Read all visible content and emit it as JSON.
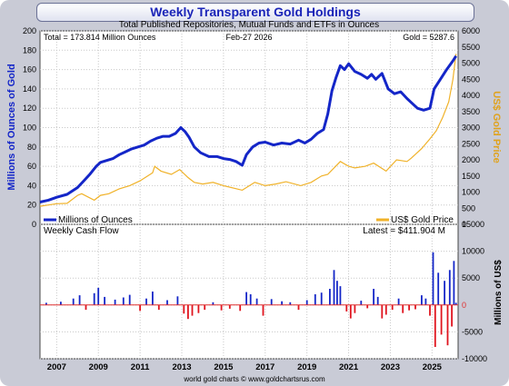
{
  "chart_data": [
    {
      "type": "line",
      "title": "Weekly Transparent Gold Holdings",
      "subtitle": "Total Published Repositories, Mutual Funds and ETFs in Ounces",
      "annotations": {
        "total": "Total = 173.814 Million Ounces",
        "date": "Feb-27  2026",
        "gold": "Gold = 5287.6"
      },
      "ylabel": "Millions of Ounces of Gold",
      "y2label": "US$ Gold Price",
      "ylim": [
        0,
        200
      ],
      "y2lim": [
        0,
        6000
      ],
      "yticks": [
        "0",
        "20",
        "40",
        "60",
        "80",
        "100",
        "120",
        "140",
        "160",
        "180",
        "200"
      ],
      "y2ticks": [
        "0",
        "500",
        "1000",
        "1500",
        "2000",
        "2500",
        "3000",
        "3500",
        "4000",
        "4500",
        "5000",
        "5500",
        "6000"
      ],
      "grid": true,
      "legend_position": "bottom",
      "colors": {
        "holdings": "#1426c8",
        "price": "#f0b229"
      },
      "series": [
        {
          "name": "Millions of Ounces",
          "axis": "left",
          "x": [
            2006.2,
            2006.6,
            2007.0,
            2007.5,
            2008.0,
            2008.3,
            2008.6,
            2008.9,
            2009.1,
            2009.4,
            2009.7,
            2010.0,
            2010.3,
            2010.6,
            2010.9,
            2011.2,
            2011.5,
            2011.8,
            2012.1,
            2012.4,
            2012.7,
            2012.95,
            2013.15,
            2013.35,
            2013.6,
            2013.9,
            2014.3,
            2014.7,
            2015.0,
            2015.3,
            2015.6,
            2015.9,
            2016.1,
            2016.4,
            2016.7,
            2017.0,
            2017.4,
            2017.8,
            2018.2,
            2018.6,
            2018.9,
            2019.2,
            2019.5,
            2019.8,
            2020.0,
            2020.2,
            2020.4,
            2020.6,
            2020.8,
            2021.0,
            2021.3,
            2021.6,
            2021.9,
            2022.1,
            2022.3,
            2022.6,
            2022.9,
            2023.2,
            2023.5,
            2023.8,
            2024.0,
            2024.3,
            2024.6,
            2024.9,
            2025.1,
            2025.4,
            2025.7,
            2026.0,
            2026.15
          ],
          "values": [
            23,
            25,
            28,
            31,
            38,
            45,
            52,
            60,
            64,
            66,
            68,
            72,
            75,
            78,
            80,
            82,
            86,
            89,
            91,
            91,
            94,
            100,
            96,
            90,
            80,
            74,
            70,
            70,
            68,
            67,
            65,
            61,
            72,
            80,
            84,
            85,
            82,
            84,
            83,
            87,
            84,
            88,
            94,
            98,
            114,
            138,
            152,
            164,
            160,
            166,
            158,
            155,
            151,
            155,
            150,
            156,
            140,
            135,
            137,
            130,
            126,
            120,
            118,
            120,
            140,
            150,
            160,
            169,
            174
          ]
        },
        {
          "name": "US$ Gold Price",
          "axis": "right",
          "x": [
            2006.2,
            2006.6,
            2007.0,
            2007.5,
            2008.0,
            2008.2,
            2008.8,
            2009.1,
            2009.5,
            2010.0,
            2010.5,
            2011.0,
            2011.6,
            2011.7,
            2012.0,
            2012.5,
            2012.9,
            2013.3,
            2013.6,
            2014.0,
            2014.5,
            2015.0,
            2015.9,
            2016.5,
            2017.0,
            2017.5,
            2018.0,
            2018.7,
            2019.2,
            2019.7,
            2020.0,
            2020.6,
            2021.0,
            2021.3,
            2021.8,
            2022.2,
            2022.8,
            2023.3,
            2023.8,
            2024.0,
            2024.5,
            2024.9,
            2025.2,
            2025.5,
            2025.8,
            2026.0,
            2026.15
          ],
          "values": [
            560,
            600,
            640,
            650,
            900,
            950,
            750,
            900,
            950,
            1100,
            1200,
            1350,
            1600,
            1800,
            1650,
            1550,
            1700,
            1450,
            1300,
            1250,
            1300,
            1200,
            1060,
            1300,
            1200,
            1250,
            1320,
            1200,
            1300,
            1500,
            1550,
            1950,
            1800,
            1750,
            1800,
            1900,
            1650,
            2000,
            1950,
            2050,
            2350,
            2650,
            2900,
            3300,
            3800,
            4500,
            5287
          ]
        }
      ],
      "xlabels": [
        "2007",
        "2009",
        "2011",
        "2013",
        "2015",
        "2017",
        "2019",
        "2021",
        "2023",
        "2025"
      ],
      "legend": [
        "Millions of Ounces",
        "US$ Gold Price"
      ]
    },
    {
      "type": "bar",
      "title": "Weekly Cash Flow",
      "annotation": "Latest = $411.904 M",
      "ylabel": "Millions of US$",
      "ylim": [
        -10000,
        15000
      ],
      "yticks": [
        "15000",
        "10000",
        "5000",
        "0",
        "-5000",
        "-10000"
      ],
      "colors": {
        "positive": "#1426c8",
        "negative": "#e0141e",
        "zero_line": "#e03030"
      },
      "flows": [
        {
          "x": 2006.5,
          "v": 400
        },
        {
          "x": 2007.2,
          "v": 600
        },
        {
          "x": 2007.8,
          "v": 1200
        },
        {
          "x": 2008.1,
          "v": 1800
        },
        {
          "x": 2008.4,
          "v": -900
        },
        {
          "x": 2008.8,
          "v": 2200
        },
        {
          "x": 2009.0,
          "v": 3200
        },
        {
          "x": 2009.3,
          "v": 1500
        },
        {
          "x": 2009.8,
          "v": 1000
        },
        {
          "x": 2010.2,
          "v": 1400
        },
        {
          "x": 2010.5,
          "v": 1900
        },
        {
          "x": 2011.0,
          "v": -1100
        },
        {
          "x": 2011.3,
          "v": 1200
        },
        {
          "x": 2011.6,
          "v": 2500
        },
        {
          "x": 2011.9,
          "v": -900
        },
        {
          "x": 2012.3,
          "v": 900
        },
        {
          "x": 2012.8,
          "v": 1600
        },
        {
          "x": 2013.1,
          "v": -1600
        },
        {
          "x": 2013.3,
          "v": -2600
        },
        {
          "x": 2013.5,
          "v": -2000
        },
        {
          "x": 2013.8,
          "v": -1500
        },
        {
          "x": 2014.1,
          "v": -900
        },
        {
          "x": 2014.5,
          "v": 500
        },
        {
          "x": 2014.9,
          "v": -1000
        },
        {
          "x": 2015.3,
          "v": -700
        },
        {
          "x": 2015.8,
          "v": -1100
        },
        {
          "x": 2016.1,
          "v": 2400
        },
        {
          "x": 2016.3,
          "v": 2000
        },
        {
          "x": 2016.6,
          "v": 1200
        },
        {
          "x": 2016.9,
          "v": -2000
        },
        {
          "x": 2017.3,
          "v": 1100
        },
        {
          "x": 2017.8,
          "v": 700
        },
        {
          "x": 2018.2,
          "v": 500
        },
        {
          "x": 2018.6,
          "v": -900
        },
        {
          "x": 2019.0,
          "v": 900
        },
        {
          "x": 2019.4,
          "v": 2000
        },
        {
          "x": 2019.7,
          "v": 2300
        },
        {
          "x": 2020.1,
          "v": 3000
        },
        {
          "x": 2020.3,
          "v": 6500
        },
        {
          "x": 2020.45,
          "v": 4500
        },
        {
          "x": 2020.6,
          "v": 3500
        },
        {
          "x": 2020.9,
          "v": -1200
        },
        {
          "x": 2021.1,
          "v": -2500
        },
        {
          "x": 2021.3,
          "v": -1500
        },
        {
          "x": 2021.6,
          "v": 800
        },
        {
          "x": 2021.9,
          "v": -600
        },
        {
          "x": 2022.2,
          "v": 3000
        },
        {
          "x": 2022.4,
          "v": 1500
        },
        {
          "x": 2022.6,
          "v": -2500
        },
        {
          "x": 2022.8,
          "v": -1800
        },
        {
          "x": 2023.1,
          "v": -900
        },
        {
          "x": 2023.4,
          "v": 1200
        },
        {
          "x": 2023.6,
          "v": -1500
        },
        {
          "x": 2023.9,
          "v": -1000
        },
        {
          "x": 2024.2,
          "v": -800
        },
        {
          "x": 2024.5,
          "v": 1800
        },
        {
          "x": 2024.7,
          "v": 1200
        },
        {
          "x": 2024.9,
          "v": -2000
        },
        {
          "x": 2025.05,
          "v": 9800
        },
        {
          "x": 2025.15,
          "v": -7800
        },
        {
          "x": 2025.3,
          "v": 6000
        },
        {
          "x": 2025.45,
          "v": -5500
        },
        {
          "x": 2025.6,
          "v": 4500
        },
        {
          "x": 2025.75,
          "v": -7500
        },
        {
          "x": 2025.85,
          "v": 6500
        },
        {
          "x": 2025.95,
          "v": -4000
        },
        {
          "x": 2026.05,
          "v": 8200
        },
        {
          "x": 2026.15,
          "v": 412
        }
      ]
    }
  ],
  "footer": "world gold charts © www.goldchartsrus.com"
}
